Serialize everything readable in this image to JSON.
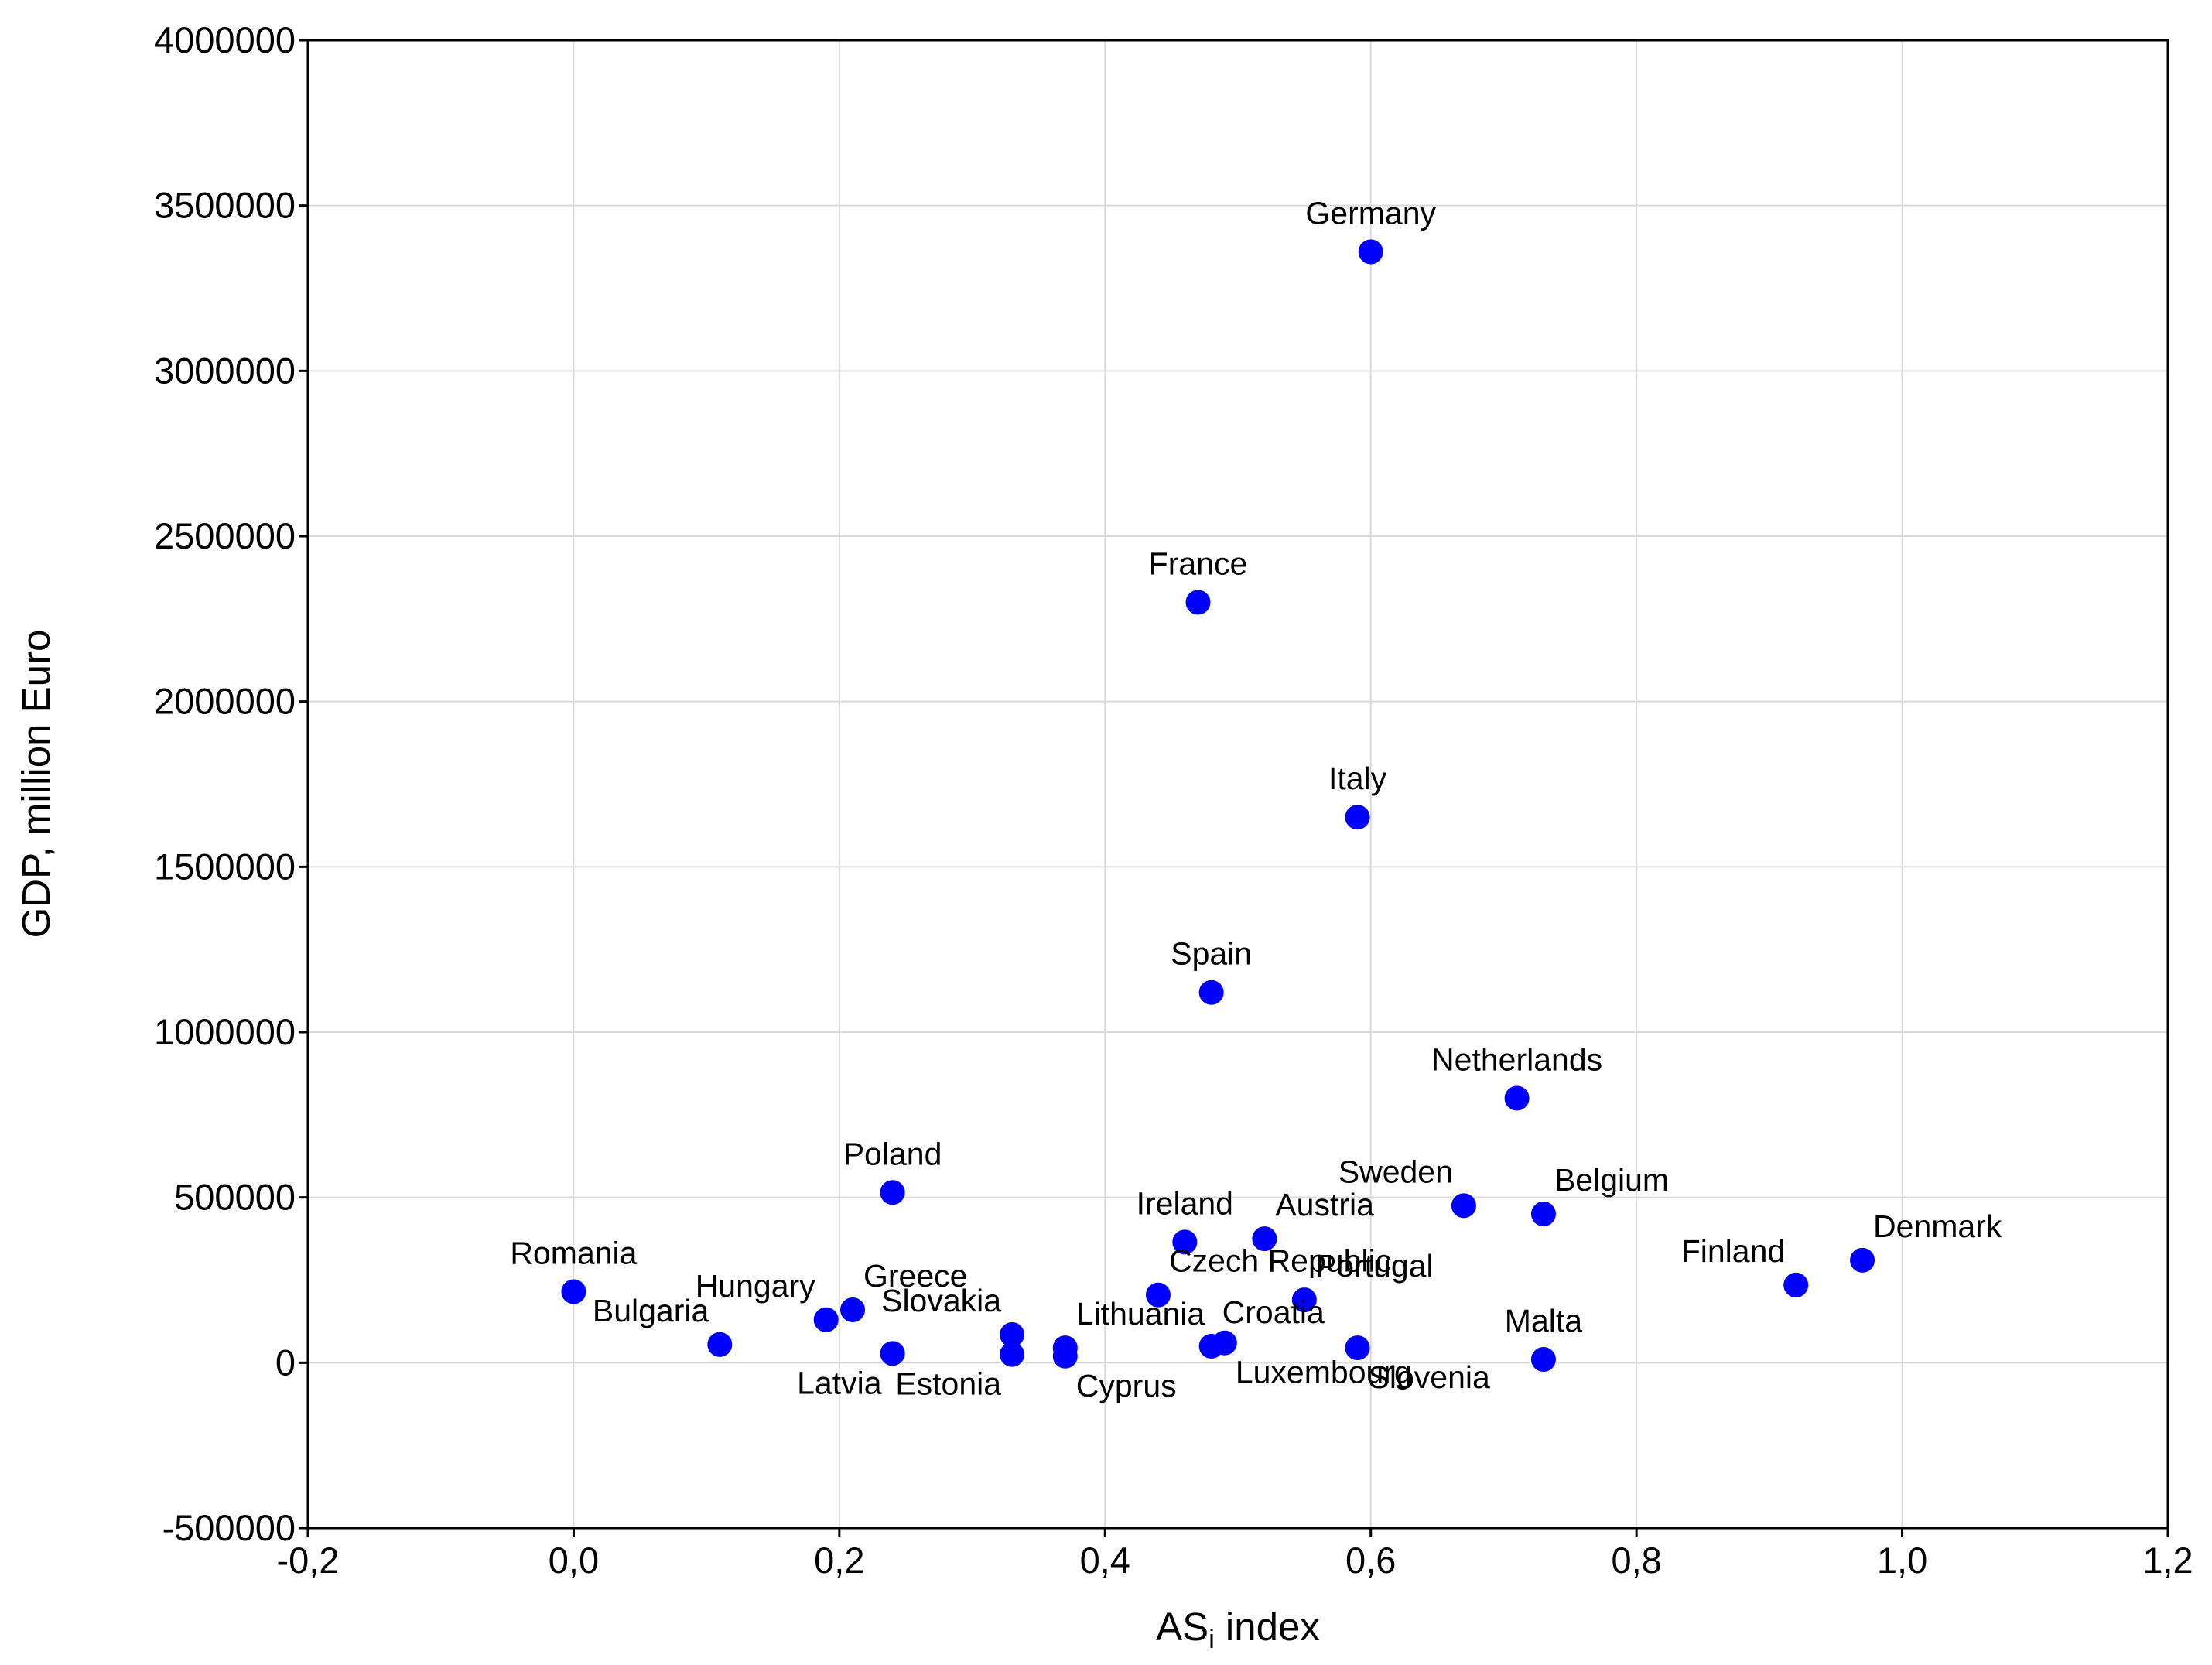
{
  "chart_data": {
    "type": "scatter",
    "title": "",
    "xlabel": "AS",
    "xlabel_subscript": "i",
    "xlabel_suffix": " index",
    "ylabel": "GDP, million Euro",
    "xlim": [
      -0.2,
      1.2
    ],
    "ylim": [
      -500000,
      4000000
    ],
    "xticks": [
      -0.2,
      0.0,
      0.2,
      0.4,
      0.6,
      0.8,
      1.0,
      1.2
    ],
    "xtick_labels": [
      "-0,2",
      "0,0",
      "0,2",
      "0,4",
      "0,6",
      "0,8",
      "1,0",
      "1,2"
    ],
    "yticks": [
      -500000,
      0,
      500000,
      1000000,
      1500000,
      2000000,
      2500000,
      3000000,
      3500000,
      4000000
    ],
    "ytick_labels": [
      "-500000",
      "0",
      "500000",
      "1000000",
      "1500000",
      "2000000",
      "2500000",
      "3000000",
      "3500000",
      "4000000"
    ],
    "grid": true,
    "marker_color": "#0000ff",
    "points": [
      {
        "label": "Germany",
        "x": 0.6,
        "y": 3360000,
        "label_pos": "above"
      },
      {
        "label": "France",
        "x": 0.47,
        "y": 2300000,
        "label_pos": "above"
      },
      {
        "label": "Italy",
        "x": 0.59,
        "y": 1650000,
        "label_pos": "above"
      },
      {
        "label": "Spain",
        "x": 0.48,
        "y": 1120000,
        "label_pos": "above"
      },
      {
        "label": "Netherlands",
        "x": 0.71,
        "y": 800000,
        "label_pos": "above"
      },
      {
        "label": "Poland",
        "x": 0.24,
        "y": 515000,
        "label_pos": "above"
      },
      {
        "label": "Sweden",
        "x": 0.67,
        "y": 475000,
        "label_pos": "above-left"
      },
      {
        "label": "Belgium",
        "x": 0.73,
        "y": 450000,
        "label_pos": "above-right"
      },
      {
        "label": "Ireland",
        "x": 0.46,
        "y": 365000,
        "label_pos": "above"
      },
      {
        "label": "Austria",
        "x": 0.52,
        "y": 375000,
        "label_pos": "above-right"
      },
      {
        "label": "Denmark",
        "x": 0.97,
        "y": 310000,
        "label_pos": "above-right"
      },
      {
        "label": "Finland",
        "x": 0.92,
        "y": 235000,
        "label_pos": "above-left"
      },
      {
        "label": "Romania",
        "x": 0.0,
        "y": 215000,
        "label_pos": "above"
      },
      {
        "label": "Greece",
        "x": 0.21,
        "y": 160000,
        "label_pos": "above-right"
      },
      {
        "label": "Hungary",
        "x": 0.19,
        "y": 130000,
        "label_pos": "above-left"
      },
      {
        "label": "Czech Republic",
        "x": 0.44,
        "y": 205000,
        "label_pos": "above-right"
      },
      {
        "label": "Portugal",
        "x": 0.55,
        "y": 190000,
        "label_pos": "above-right"
      },
      {
        "label": "Bulgaria",
        "x": 0.11,
        "y": 55000,
        "label_pos": "above-left"
      },
      {
        "label": "Slovakia",
        "x": 0.33,
        "y": 85000,
        "label_pos": "above-left"
      },
      {
        "label": "Lithuania",
        "x": 0.37,
        "y": 45000,
        "label_pos": "above-right"
      },
      {
        "label": "Estonia",
        "x": 0.33,
        "y": 25000,
        "label_pos": "below-left"
      },
      {
        "label": "Cyprus",
        "x": 0.37,
        "y": 20000,
        "label_pos": "below-right"
      },
      {
        "label": "Latvia",
        "x": 0.24,
        "y": 28000,
        "label_pos": "below-left"
      },
      {
        "label": "Croatia",
        "x": 0.48,
        "y": 50000,
        "label_pos": "above-right"
      },
      {
        "label": "Luxembourg",
        "x": 0.49,
        "y": 60000,
        "label_pos": "below-right"
      },
      {
        "label": "Slovenia",
        "x": 0.59,
        "y": 45000,
        "label_pos": "below-right"
      },
      {
        "label": "Malta",
        "x": 0.73,
        "y": 10000,
        "label_pos": "above"
      }
    ]
  }
}
